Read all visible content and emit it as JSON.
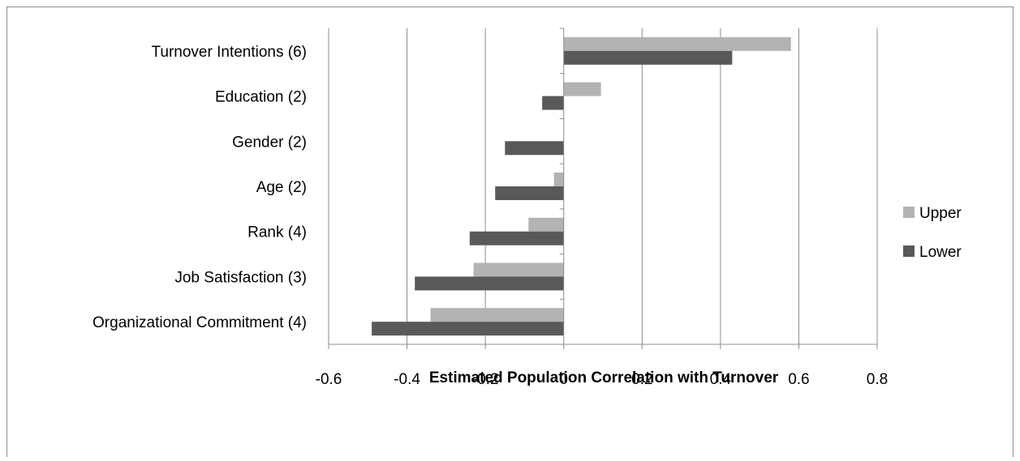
{
  "chart_data": {
    "type": "bar",
    "orientation": "horizontal",
    "categories": [
      "Turnover Intentions (6)",
      "Education (2)",
      "Gender (2)",
      "Age (2)",
      "Rank (4)",
      "Job Satisfaction (3)",
      "Organizational Commitment (4)"
    ],
    "series": [
      {
        "name": "Upper",
        "values": [
          0.58,
          0.095,
          0.0,
          -0.025,
          -0.09,
          -0.23,
          -0.34
        ],
        "color": "#b3b3b3"
      },
      {
        "name": "Lower",
        "values": [
          0.43,
          -0.055,
          -0.15,
          -0.175,
          -0.24,
          -0.38,
          -0.49
        ],
        "color": "#595959"
      }
    ],
    "xlabel": "Estimated Population Correlation with Turnover",
    "ylabel": "",
    "xlim": [
      -0.6,
      0.8
    ],
    "xticks": [
      "-0.6",
      "-0.4",
      "-0.2",
      "0",
      "0.2",
      "0.4",
      "0.6",
      "0.8"
    ],
    "grid": "vertical major gridlines",
    "legend_position": "right"
  }
}
